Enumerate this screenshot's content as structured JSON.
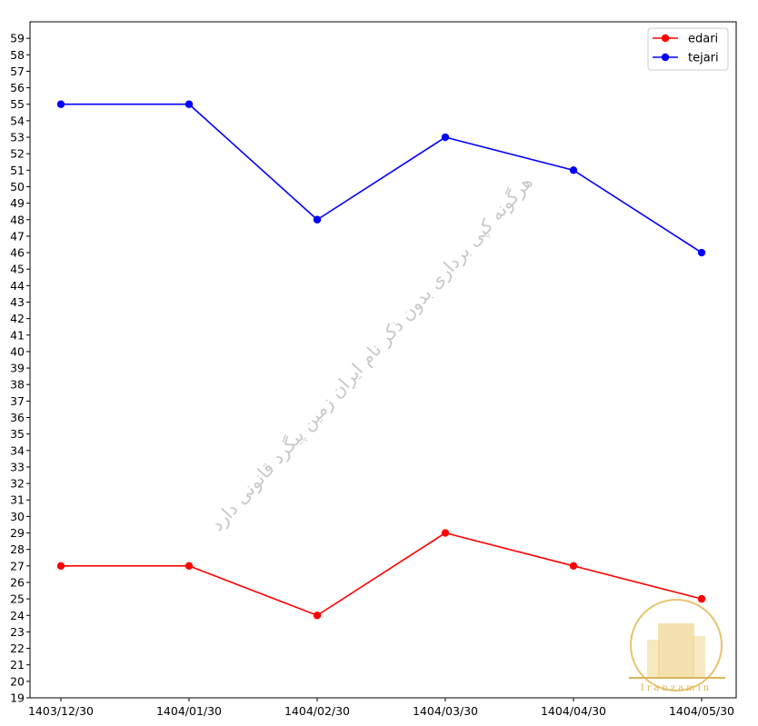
{
  "chart_data": {
    "type": "line",
    "title": "",
    "xlabel": "",
    "ylabel": "",
    "categories": [
      "1403/12/30",
      "1404/01/30",
      "1404/02/30",
      "1404/03/30",
      "1404/04/30",
      "1404/05/30"
    ],
    "series": [
      {
        "name": "edari",
        "color": "#ff0000",
        "values": [
          27,
          27,
          24,
          29,
          27,
          25
        ]
      },
      {
        "name": "tejari",
        "color": "#0000ff",
        "values": [
          55,
          55,
          48,
          53,
          51,
          46
        ]
      }
    ],
    "ylim": [
      19,
      60
    ],
    "yticks": [
      19,
      20,
      21,
      22,
      23,
      24,
      25,
      26,
      27,
      28,
      29,
      30,
      31,
      32,
      33,
      34,
      35,
      36,
      37,
      38,
      39,
      40,
      41,
      42,
      43,
      44,
      45,
      46,
      47,
      48,
      49,
      50,
      51,
      52,
      53,
      54,
      55,
      56,
      57,
      58,
      59
    ],
    "grid": false,
    "legend_position": "top-right",
    "watermark": "هرگونه کپی برداری بدون ذکر نام ایران زمین پیگرد قانونی دارد",
    "logo_text": "Iranzamin"
  }
}
